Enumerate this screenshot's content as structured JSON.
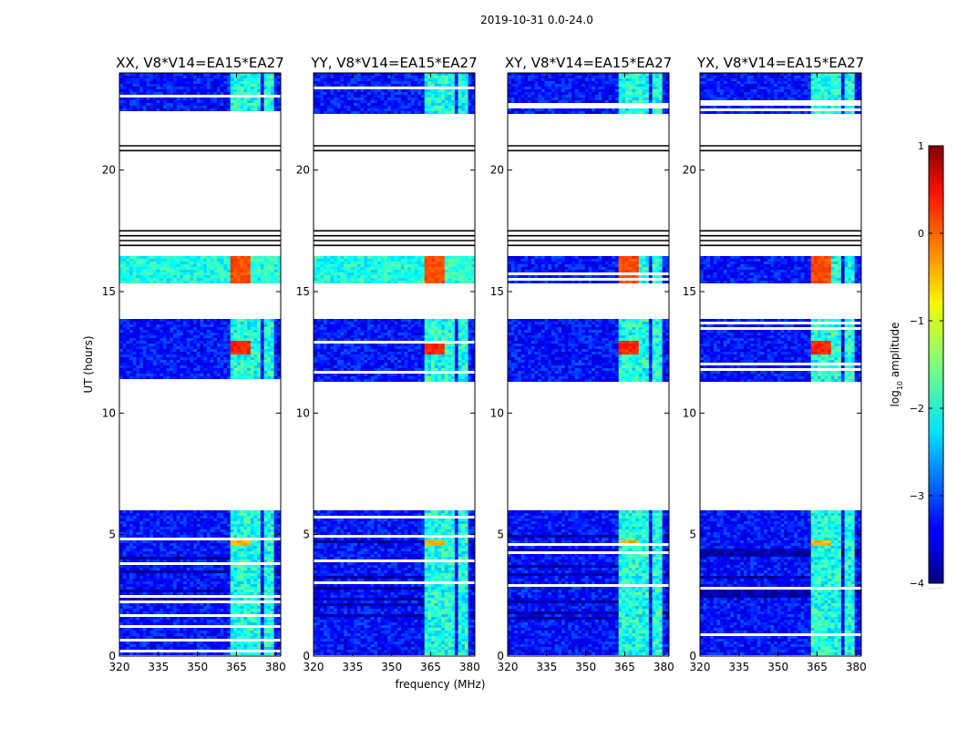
{
  "figure": {
    "suptitle": "2019-10-31 0.0-24.0",
    "xlabel": "frequency (MHz)",
    "ylabel": "UT (hours)"
  },
  "colorbar": {
    "label": "log10 amplitude",
    "label_main": "log",
    "label_sub": "10",
    "label_rest": " amplitude",
    "range": [
      -4,
      1
    ],
    "ticks": [
      1,
      0,
      -1,
      -2,
      -3,
      -4
    ],
    "tick_labels": [
      "1",
      "0",
      "−1",
      "−2",
      "−3",
      "−4"
    ],
    "colormap": "jet",
    "dots": "·······"
  },
  "chart_data": {
    "type": "heatmap",
    "title": "2019-10-31 0.0-24.0",
    "xlabel": "frequency (MHz)",
    "ylabel": "UT (hours)",
    "xlim": [
      320,
      382
    ],
    "ylim": [
      0,
      24
    ],
    "x_ticks": [
      320,
      335,
      350,
      365,
      380
    ],
    "x_tick_labels": [
      "320",
      "335",
      "350",
      "365",
      "380"
    ],
    "y_ticks": [
      0,
      5,
      10,
      15,
      20
    ],
    "y_tick_labels": [
      "0",
      "5",
      "10",
      "15",
      "20"
    ],
    "value_label": "log10 amplitude",
    "value_range": [
      -4,
      1
    ],
    "panels": [
      {
        "title": "XX, V8*V14=EA15*EA27",
        "polarization": "XX"
      },
      {
        "title": "YY, V8*V14=EA15*EA27",
        "polarization": "YY"
      },
      {
        "title": "XY, V8*V14=EA15*EA27",
        "polarization": "XY"
      },
      {
        "title": "YX, V8*V14=EA15*EA27",
        "polarization": "YX"
      }
    ],
    "data_blocks_hours": [
      [
        0,
        6
      ],
      [
        11.3,
        13.9
      ],
      [
        15.3,
        16.5
      ],
      [
        22.3,
        24
      ]
    ],
    "flagged_lines_hours": [
      16.9,
      17.1,
      17.3,
      17.5,
      20.8,
      21.0
    ],
    "rfi_channels_mhz": [
      [
        362,
        366
      ],
      [
        366,
        370
      ],
      [
        371,
        374
      ],
      [
        375,
        378
      ],
      [
        378,
        380
      ]
    ],
    "strong_bursts": [
      {
        "ut_range": [
          15.3,
          16.5
        ],
        "freq_range_mhz": [
          362,
          370
        ],
        "log10_amplitude": 0.0
      },
      {
        "ut_range": [
          12.4,
          13.0
        ],
        "freq_range_mhz": [
          362,
          370
        ],
        "log10_amplitude": 0.2
      },
      {
        "ut_range": [
          4.5,
          4.8
        ],
        "freq_range_mhz": [
          362,
          370
        ],
        "log10_amplitude": -0.5
      }
    ],
    "background_log10_amplitude": -3.3,
    "background_log10_amplitude_xx_yy_15_16h": -2.0
  }
}
